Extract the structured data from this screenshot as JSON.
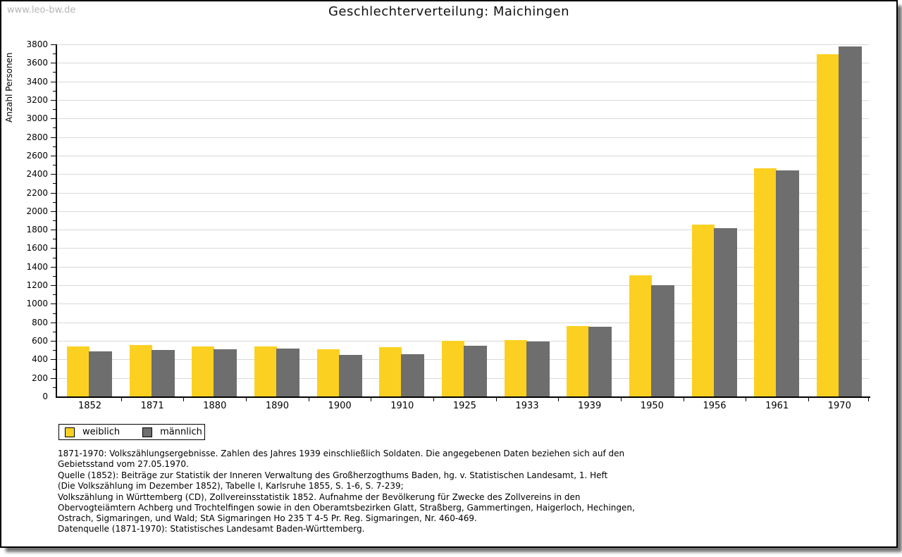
{
  "watermark": "www.leo-bw.de",
  "title": "Geschlechterverteilung: Maichingen",
  "chart_data": {
    "type": "bar",
    "title": "Geschlechterverteilung: Maichingen",
    "xlabel": "",
    "ylabel": "Anzahl Personen",
    "ylim": [
      0,
      3800
    ],
    "ytick_step": 200,
    "ytick_minor_step": 100,
    "grid": true,
    "legend_position": "bottom-left",
    "categories": [
      "1852",
      "1871",
      "1880",
      "1890",
      "1900",
      "1910",
      "1925",
      "1933",
      "1939",
      "1950",
      "1956",
      "1961",
      "1970"
    ],
    "series": [
      {
        "name": "weiblich",
        "color": "#fcd020",
        "values": [
          540,
          555,
          540,
          540,
          510,
          530,
          600,
          610,
          760,
          1305,
          1855,
          2460,
          3690
        ]
      },
      {
        "name": "männlich",
        "color": "#6e6e6e",
        "values": [
          490,
          505,
          510,
          520,
          450,
          455,
          545,
          590,
          750,
          1200,
          1820,
          2440,
          3780
        ]
      }
    ]
  },
  "legend": {
    "items": [
      {
        "label": "weiblich",
        "color": "#fcd020"
      },
      {
        "label": "männlich",
        "color": "#6e6e6e"
      }
    ]
  },
  "footnotes": {
    "lines": [
      "1871-1970: Volkszählungsergebnisse. Zahlen des Jahres 1939 einschließlich Soldaten. Die angegebenen Daten beziehen sich auf den",
      "Gebietsstand vom 27.05.1970.",
      "Quelle (1852): Beiträge zur Statistik der Inneren Verwaltung des Großherzogthums Baden, hg. v. Statistischen Landesamt, 1. Heft",
      "(Die Volkszählung im Dezember 1852), Tabelle I, Karlsruhe 1855, S. 1-6, S. 7-239;",
      "Volkszählung in Württemberg (CD), Zollvereinsstatistik 1852. Aufnahme der Bevölkerung für Zwecke des Zollvereins in den",
      "Obervogteiämtern Achberg und Trochtelfingen sowie in den Oberamtsbezirken Glatt, Straßberg, Gammertingen, Haigerloch, Hechingen,",
      "Ostrach, Sigmaringen, und Wald; StA Sigmaringen Ho 235 T 4-5 Pr. Reg. Sigmaringen, Nr. 460-469."
    ],
    "datasource": "Datenquelle (1871-1970): Statistisches Landesamt Baden-Württemberg."
  },
  "colors": {
    "weiblich": "#fcd020",
    "maennlich": "#6e6e6e",
    "gridline": "#d9d9d9",
    "watermark": "#b5b5b5",
    "border": "#000000"
  }
}
